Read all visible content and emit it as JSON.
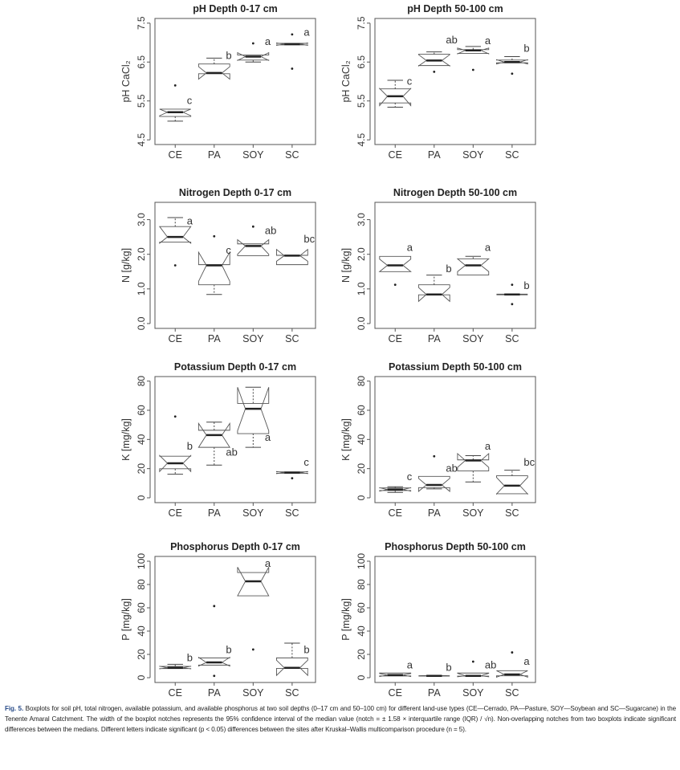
{
  "categories": [
    "CE",
    "PA",
    "SOY",
    "SC"
  ],
  "caption": {
    "label": "Fig. 5.",
    "text": "Boxplots for soil pH, total nitrogen, available potassium, and available phosphorus at two soil depths (0–17 cm and 50–100 cm) for different land-use types (CE—Cerrado, PA—Pasture, SOY—Soybean and SC—Sugarcane) in the Tenente Amaral Catchment. The width of the boxplot notches represents the 95% confidence interval of the median value (notch = ± 1.58 × interquartile range (IQR) / √n). Non-overlapping notches from two boxplots indicate significant differences between the medians. Different letters indicate significant (p < 0.05) differences between the sites after Kruskal–Wallis multicomparison procedure (n = 5)."
  },
  "chart_data": [
    {
      "type": "boxplot",
      "title": "pH Depth 0-17 cm",
      "ylabel": "pH CaCl₂",
      "ylim": [
        4.38,
        7.62
      ],
      "yticks": [
        "4.5",
        "5.5",
        "6.5",
        "7.5"
      ],
      "ytick_values": [
        4.5,
        5.5,
        6.5,
        7.5
      ],
      "categories": [
        "CE",
        "PA",
        "SOY",
        "SC"
      ],
      "boxes": [
        {
          "whisker_low": 4.98,
          "q1": 5.1,
          "median": 5.21,
          "q3": 5.29,
          "whisker_high": 5.29,
          "notch": [
            5.12,
            5.29
          ],
          "outliers": [
            5.9
          ],
          "letter": "c",
          "letter_y": 5.42
        },
        {
          "whisker_low": 6.2,
          "q1": 6.2,
          "median": 6.22,
          "q3": 6.45,
          "whisker_high": 6.6,
          "notch": [
            6.06,
            6.38
          ],
          "outliers": [],
          "letter": "b",
          "letter_y": 6.58
        },
        {
          "whisker_low": 6.5,
          "q1": 6.55,
          "median": 6.64,
          "q3": 6.68,
          "whisker_high": 6.68,
          "notch": [
            6.54,
            6.74
          ],
          "outliers": [
            6.98
          ],
          "letter": "a",
          "letter_y": 6.94
        },
        {
          "whisker_low": 6.94,
          "q1": 6.94,
          "median": 6.96,
          "q3": 6.98,
          "whisker_high": 6.98,
          "notch": [
            6.93,
            6.99
          ],
          "outliers": [
            7.21,
            6.33
          ],
          "letter": "a",
          "letter_y": 7.18
        }
      ]
    },
    {
      "type": "boxplot",
      "title": "pH Depth 50-100 cm",
      "ylabel": "pH CaCl₂",
      "ylim": [
        4.38,
        7.62
      ],
      "yticks": [
        "4.5",
        "5.5",
        "6.5",
        "7.5"
      ],
      "ytick_values": [
        4.5,
        5.5,
        6.5,
        7.5
      ],
      "categories": [
        "CE",
        "PA",
        "SOY",
        "SC"
      ],
      "boxes": [
        {
          "whisker_low": 5.34,
          "q1": 5.45,
          "median": 5.62,
          "q3": 5.81,
          "whisker_high": 6.03,
          "notch": [
            5.38,
            5.82
          ],
          "outliers": [],
          "letter": "c",
          "letter_y": 5.92
        },
        {
          "whisker_low": 6.41,
          "q1": 6.41,
          "median": 6.54,
          "q3": 6.7,
          "whisker_high": 6.76,
          "notch": [
            6.4,
            6.69
          ],
          "outliers": [
            6.25
          ],
          "letter": "ab",
          "letter_y": 6.98
        },
        {
          "whisker_low": 6.72,
          "q1": 6.72,
          "median": 6.8,
          "q3": 6.82,
          "whisker_high": 6.9,
          "notch": [
            6.71,
            6.86
          ],
          "outliers": [
            6.3
          ],
          "letter": "a",
          "letter_y": 6.96
        },
        {
          "whisker_low": 6.48,
          "q1": 6.48,
          "median": 6.5,
          "q3": 6.55,
          "whisker_high": 6.64,
          "notch": [
            6.45,
            6.56
          ],
          "outliers": [
            6.2
          ],
          "letter": "b",
          "letter_y": 6.76
        }
      ]
    },
    {
      "type": "boxplot",
      "title": "Nitrogen Depth 0-17 cm",
      "ylabel": "N [g/kg]",
      "ylim": [
        -0.14,
        3.5
      ],
      "yticks": [
        "0.0",
        "1.0",
        "2.0",
        "3.0"
      ],
      "ytick_values": [
        0,
        1,
        2,
        3
      ],
      "categories": [
        "CE",
        "PA",
        "SOY",
        "SC"
      ],
      "boxes": [
        {
          "whisker_low": 2.35,
          "q1": 2.35,
          "median": 2.5,
          "q3": 2.8,
          "whisker_high": 3.06,
          "notch": [
            2.32,
            2.8
          ],
          "outliers": [
            1.68
          ],
          "letter": "a",
          "letter_y": 2.86
        },
        {
          "whisker_low": 0.84,
          "q1": 1.12,
          "median": 1.68,
          "q3": 1.7,
          "whisker_high": 1.7,
          "notch": [
            1.22,
            2.06
          ],
          "outliers": [
            2.52
          ],
          "letter": "c",
          "letter_y": 2.02
        },
        {
          "whisker_low": 1.96,
          "q1": 1.96,
          "median": 2.24,
          "q3": 2.3,
          "whisker_high": 2.3,
          "notch": [
            2.0,
            2.42
          ],
          "outliers": [
            2.8
          ],
          "letter": "ab",
          "letter_y": 2.58
        },
        {
          "whisker_low": 1.7,
          "q1": 1.7,
          "median": 1.96,
          "q3": 1.97,
          "whisker_high": 1.97,
          "notch": [
            1.8,
            2.14
          ],
          "outliers": [],
          "letter": "bc",
          "letter_y": 2.34
        }
      ]
    },
    {
      "type": "boxplot",
      "title": "Nitrogen Depth 50-100 cm",
      "ylabel": "N [g/kg]",
      "ylim": [
        -0.14,
        3.5
      ],
      "yticks": [
        "0.0",
        "1.0",
        "2.0",
        "3.0"
      ],
      "ytick_values": [
        0,
        1,
        2,
        3
      ],
      "categories": [
        "CE",
        "PA",
        "SOY",
        "SC"
      ],
      "boxes": [
        {
          "whisker_low": 1.5,
          "q1": 1.5,
          "median": 1.68,
          "q3": 1.94,
          "whisker_high": 1.94,
          "notch": [
            1.5,
            1.86
          ],
          "outliers": [
            1.12
          ],
          "letter": "a",
          "letter_y": 2.1
        },
        {
          "whisker_low": 0.83,
          "q1": 0.83,
          "median": 0.84,
          "q3": 1.12,
          "whisker_high": 1.4,
          "notch": [
            0.64,
            1.04
          ],
          "outliers": [],
          "letter": "b",
          "letter_y": 1.48
        },
        {
          "whisker_low": 1.4,
          "q1": 1.4,
          "median": 1.68,
          "q3": 1.87,
          "whisker_high": 1.94,
          "notch": [
            1.5,
            1.87
          ],
          "outliers": [],
          "letter": "a",
          "letter_y": 2.1
        },
        {
          "whisker_low": 0.83,
          "q1": 0.83,
          "median": 0.84,
          "q3": 0.85,
          "whisker_high": 0.85,
          "notch": [
            0.83,
            0.85
          ],
          "outliers": [
            1.12,
            0.56
          ],
          "letter": "b",
          "letter_y": 1.0
        }
      ]
    },
    {
      "type": "boxplot",
      "title": "Potassium Depth 0-17 cm",
      "ylabel": "K [mg/kg]",
      "ylim": [
        -3.3,
        83.1
      ],
      "yticks": [
        "0",
        "20",
        "40",
        "60",
        "80"
      ],
      "ytick_values": [
        0,
        20,
        40,
        60,
        80
      ],
      "categories": [
        "CE",
        "PA",
        "SOY",
        "SC"
      ],
      "boxes": [
        {
          "whisker_low": 16.2,
          "q1": 19.9,
          "median": 23.7,
          "q3": 28.5,
          "whisker_high": 28.5,
          "notch": [
            18.0,
            29.0
          ],
          "outliers": [
            55.7
          ],
          "letter": "b",
          "letter_y": 33
        },
        {
          "whisker_low": 22.4,
          "q1": 34.6,
          "median": 43.0,
          "q3": 46.3,
          "whisker_high": 51.9,
          "notch": [
            34.6,
            51.0
          ],
          "outliers": [],
          "letter": "ab",
          "letter_y": 29
        },
        {
          "whisker_low": 34.6,
          "q1": 44.0,
          "median": 61.0,
          "q3": 64.7,
          "whisker_high": 75.8,
          "notch": [
            46.0,
            75.8
          ],
          "outliers": [],
          "letter": "a",
          "letter_y": 39
        },
        {
          "whisker_low": 16.8,
          "q1": 16.8,
          "median": 17.3,
          "q3": 17.8,
          "whisker_high": 17.8,
          "notch": [
            16.6,
            18.0
          ],
          "outliers": [
            13.4
          ],
          "letter": "c",
          "letter_y": 22
        }
      ]
    },
    {
      "type": "boxplot",
      "title": "Potassium Depth 50-100 cm",
      "ylabel": "K [mg/kg]",
      "ylim": [
        -3.3,
        83.1
      ],
      "yticks": [
        "0",
        "20",
        "40",
        "60",
        "80"
      ],
      "ytick_values": [
        0,
        20,
        40,
        60,
        80
      ],
      "categories": [
        "CE",
        "PA",
        "SOY",
        "SC"
      ],
      "boxes": [
        {
          "whisker_low": 3.7,
          "q1": 5.0,
          "median": 5.7,
          "q3": 6.8,
          "whisker_high": 7.6,
          "notch": [
            4.6,
            6.9
          ],
          "outliers": [],
          "letter": "c",
          "letter_y": 12
        },
        {
          "whisker_low": 6.1,
          "q1": 7.0,
          "median": 8.8,
          "q3": 14.7,
          "whisker_high": 14.7,
          "notch": [
            4.4,
            13.3
          ],
          "outliers": [
            28.5
          ],
          "letter": "ab",
          "letter_y": 18
        },
        {
          "whisker_low": 10.9,
          "q1": 18.4,
          "median": 25.6,
          "q3": 26.0,
          "whisker_high": 28.9,
          "notch": [
            20.9,
            30.3
          ],
          "outliers": [],
          "letter": "a",
          "letter_y": 33
        },
        {
          "whisker_low": 2.8,
          "q1": 2.8,
          "median": 8.3,
          "q3": 15.1,
          "whisker_high": 18.9,
          "notch": [
            2.6,
            14.0
          ],
          "outliers": [],
          "letter": "bc",
          "letter_y": 22
        }
      ]
    },
    {
      "type": "boxplot",
      "title": "Phosphorus Depth 0-17 cm",
      "ylabel": "P [mg/kg]",
      "ylim": [
        -4.1,
        104.1
      ],
      "yticks": [
        "0",
        "20",
        "40",
        "60",
        "80",
        "100"
      ],
      "ytick_values": [
        0,
        20,
        40,
        60,
        80,
        100
      ],
      "categories": [
        "CE",
        "PA",
        "SOY",
        "SC"
      ],
      "boxes": [
        {
          "whisker_low": 7.8,
          "q1": 7.8,
          "median": 8.5,
          "q3": 9.7,
          "whisker_high": 11.5,
          "notch": [
            7.6,
            9.8
          ],
          "outliers": [],
          "letter": "b",
          "letter_y": 14
        },
        {
          "whisker_low": 10.8,
          "q1": 10.8,
          "median": 13.1,
          "q3": 17.0,
          "whisker_high": 17.0,
          "notch": [
            10.0,
            17.5
          ],
          "outliers": [
            1.6,
            61.5
          ],
          "letter": "b",
          "letter_y": 21
        },
        {
          "whisker_low": 70.3,
          "q1": 70.3,
          "median": 82.7,
          "q3": 90.3,
          "whisker_high": 90.3,
          "notch": [
            70.3,
            94.9
          ],
          "outliers": [
            24.2
          ],
          "letter": "a",
          "letter_y": 95
        },
        {
          "whisker_low": 8.0,
          "q1": 8.0,
          "median": 8.5,
          "q3": 17.0,
          "whisker_high": 29.7,
          "notch": [
            2.0,
            15.0
          ],
          "outliers": [],
          "letter": "b",
          "letter_y": 21
        }
      ]
    },
    {
      "type": "boxplot",
      "title": "Phosphorus Depth 50-100 cm",
      "ylabel": "P [mg/kg]",
      "ylim": [
        -4.1,
        104.1
      ],
      "yticks": [
        "0",
        "20",
        "40",
        "60",
        "80",
        "100"
      ],
      "ytick_values": [
        0,
        20,
        40,
        60,
        80,
        100
      ],
      "categories": [
        "CE",
        "PA",
        "SOY",
        "SC"
      ],
      "boxes": [
        {
          "whisker_low": 1.5,
          "q1": 1.5,
          "median": 2.3,
          "q3": 4.0,
          "whisker_high": 4.0,
          "notch": [
            1.0,
            3.6
          ],
          "outliers": [],
          "letter": "a",
          "letter_y": 8
        },
        {
          "whisker_low": 1.4,
          "q1": 1.4,
          "median": 1.6,
          "q3": 1.8,
          "whisker_high": 1.8,
          "notch": [
            1.4,
            1.8
          ],
          "outliers": [],
          "letter": "b",
          "letter_y": 6
        },
        {
          "whisker_low": 1.4,
          "q1": 1.4,
          "median": 1.6,
          "q3": 4.0,
          "whisker_high": 4.0,
          "notch": [
            0.8,
            3.8
          ],
          "outliers": [
            13.8
          ],
          "letter": "ab",
          "letter_y": 8
        },
        {
          "whisker_low": 1.6,
          "q1": 1.6,
          "median": 2.8,
          "q3": 6.0,
          "whisker_high": 6.0,
          "notch": [
            0.5,
            6.0
          ],
          "outliers": [
            21.7
          ],
          "letter": "a",
          "letter_y": 11
        }
      ]
    }
  ]
}
